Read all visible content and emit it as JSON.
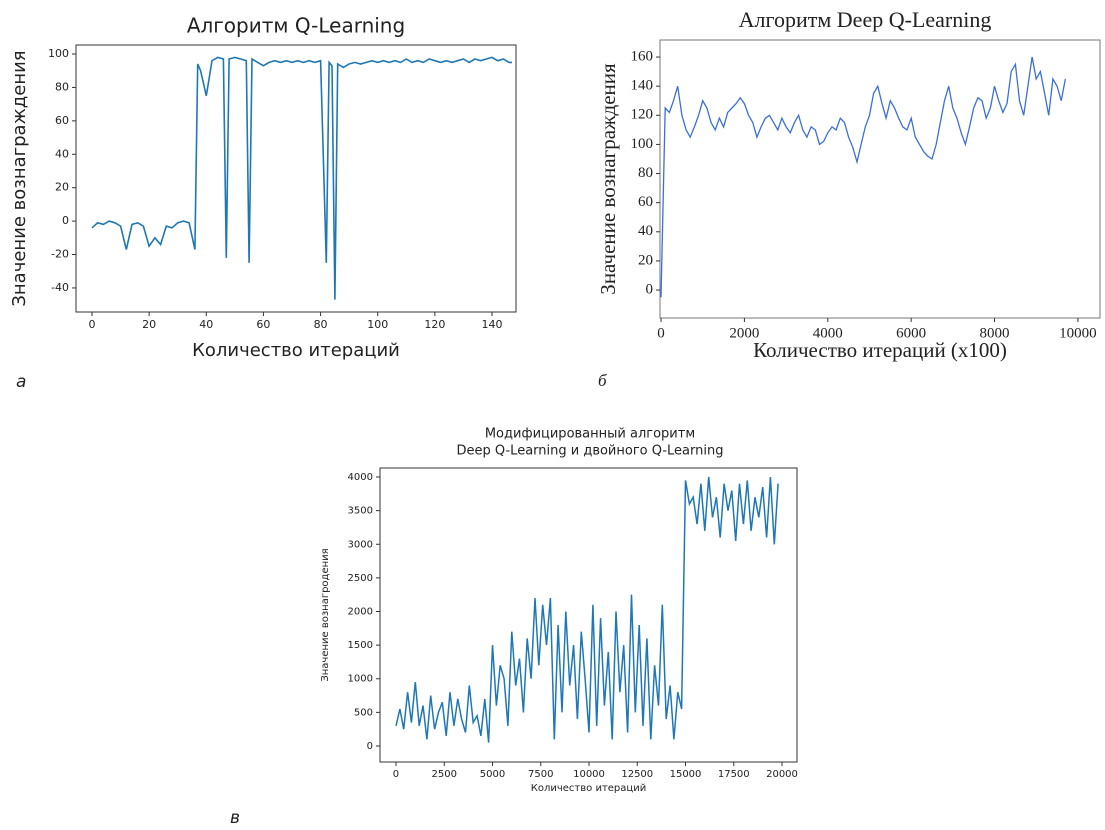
{
  "chart_data": [
    {
      "type": "line",
      "title": "Алгоритм Q-Learning",
      "xlabel": "Количество итераций",
      "ylabel": "Значение вознаграждения",
      "panel_label": "а",
      "color": "#1f77b4",
      "xlim": [
        -5.6,
        148.4
      ],
      "ylim": [
        -54.4,
        105.4
      ],
      "xticks": [
        0,
        20,
        40,
        60,
        80,
        100,
        120,
        140
      ],
      "yticks": [
        -40,
        -20,
        0,
        20,
        40,
        60,
        80,
        100
      ],
      "x": [
        0,
        2,
        4,
        6,
        8,
        10,
        12,
        14,
        16,
        18,
        20,
        22,
        24,
        26,
        28,
        30,
        32,
        34,
        36,
        37,
        38,
        40,
        42,
        44,
        46,
        47,
        48,
        50,
        52,
        54,
        55,
        56,
        58,
        60,
        62,
        64,
        66,
        68,
        70,
        72,
        74,
        76,
        78,
        80,
        82,
        83,
        84,
        85,
        86,
        88,
        90,
        92,
        94,
        96,
        98,
        100,
        102,
        104,
        106,
        108,
        110,
        112,
        114,
        116,
        118,
        120,
        122,
        124,
        126,
        128,
        130,
        132,
        134,
        136,
        138,
        140,
        142,
        144,
        146,
        147
      ],
      "values": [
        -4,
        -1,
        -2,
        0,
        -1,
        -3,
        -17,
        -2,
        -1,
        -3,
        -15,
        -10,
        -14,
        -3,
        -4,
        -1,
        0,
        -1,
        -17,
        94,
        90,
        75,
        96,
        98,
        97,
        -22,
        97,
        98,
        97,
        96,
        -25,
        97,
        95,
        93,
        95,
        96,
        95,
        96,
        95,
        96,
        95,
        96,
        95,
        96,
        -25,
        95,
        93,
        -47,
        94,
        92,
        94,
        95,
        94,
        95,
        96,
        95,
        96,
        95,
        96,
        95,
        97,
        95,
        96,
        95,
        97,
        96,
        95,
        96,
        95,
        96,
        97,
        95,
        97,
        96,
        97,
        98,
        96,
        97,
        95,
        95
      ]
    },
    {
      "type": "line",
      "title": "Алгоритм Deep Q-Learning",
      "xlabel": "Количество итераций (x100)",
      "ylabel": "Значение вознаграждения",
      "panel_label": "б",
      "color": "#3b6fd6",
      "xlim": [
        -25,
        10530
      ],
      "ylim": [
        -19.2,
        171.7
      ],
      "xticks": [
        0,
        2000,
        4000,
        6000,
        8000,
        10000
      ],
      "yticks": [
        0,
        20,
        40,
        60,
        80,
        100,
        120,
        140,
        160
      ],
      "x": [
        0,
        100,
        200,
        300,
        400,
        500,
        600,
        700,
        800,
        900,
        1000,
        1100,
        1200,
        1300,
        1400,
        1500,
        1600,
        1700,
        1800,
        1900,
        2000,
        2100,
        2200,
        2300,
        2400,
        2500,
        2600,
        2700,
        2800,
        2900,
        3000,
        3100,
        3200,
        3300,
        3400,
        3500,
        3600,
        3700,
        3800,
        3900,
        4000,
        4100,
        4200,
        4300,
        4400,
        4500,
        4600,
        4700,
        4800,
        4900,
        5000,
        5100,
        5200,
        5300,
        5400,
        5500,
        5600,
        5700,
        5800,
        5900,
        6000,
        6100,
        6200,
        6300,
        6400,
        6500,
        6600,
        6700,
        6800,
        6900,
        7000,
        7100,
        7200,
        7300,
        7400,
        7500,
        7600,
        7700,
        7800,
        7900,
        8000,
        8100,
        8200,
        8300,
        8400,
        8500,
        8600,
        8700,
        8800,
        8900,
        9000,
        9100,
        9200,
        9300,
        9400,
        9500,
        9600,
        9700
      ],
      "values": [
        -5,
        125,
        122,
        130,
        140,
        120,
        110,
        105,
        112,
        120,
        130,
        125,
        115,
        110,
        118,
        112,
        122,
        125,
        128,
        132,
        128,
        120,
        115,
        105,
        112,
        118,
        120,
        115,
        110,
        118,
        112,
        108,
        115,
        120,
        110,
        105,
        112,
        110,
        100,
        102,
        108,
        112,
        110,
        118,
        115,
        105,
        98,
        88,
        100,
        112,
        120,
        135,
        140,
        128,
        118,
        130,
        125,
        118,
        112,
        110,
        118,
        105,
        100,
        95,
        92,
        90,
        100,
        115,
        130,
        140,
        125,
        118,
        108,
        100,
        112,
        125,
        132,
        130,
        118,
        125,
        140,
        130,
        122,
        128,
        150,
        155,
        130,
        120,
        140,
        160,
        145,
        150,
        135,
        120,
        145,
        140,
        130,
        145
      ]
    },
    {
      "type": "line",
      "title": [
        "Модифицированный  алгоритм",
        "Deep Q-Learning и двойного Q-Learning"
      ],
      "xlabel": "Количество итераций",
      "ylabel": "Значение вознагродения",
      "panel_label": "в",
      "color": "#1f77b4",
      "xlim": [
        -829,
        20777
      ],
      "ylim": [
        -238,
        4134
      ],
      "xticks": [
        0,
        2500,
        5000,
        7500,
        10000,
        12500,
        15000,
        17500,
        20000
      ],
      "yticks": [
        0,
        500,
        1000,
        1500,
        2000,
        2500,
        3000,
        3500,
        4000
      ],
      "x": [
        0,
        200,
        400,
        600,
        800,
        1000,
        1200,
        1400,
        1600,
        1800,
        2000,
        2200,
        2400,
        2600,
        2800,
        3000,
        3200,
        3400,
        3600,
        3800,
        4000,
        4200,
        4400,
        4600,
        4800,
        5000,
        5200,
        5400,
        5600,
        5800,
        6000,
        6200,
        6400,
        6600,
        6800,
        7000,
        7200,
        7400,
        7600,
        7800,
        8000,
        8200,
        8400,
        8600,
        8800,
        9000,
        9200,
        9400,
        9600,
        9800,
        10000,
        10200,
        10400,
        10600,
        10800,
        11000,
        11200,
        11400,
        11600,
        11800,
        12000,
        12200,
        12400,
        12600,
        12800,
        13000,
        13200,
        13400,
        13600,
        13800,
        14000,
        14200,
        14400,
        14600,
        14800,
        15000,
        15200,
        15400,
        15600,
        15800,
        16000,
        16200,
        16400,
        16600,
        16800,
        17000,
        17200,
        17400,
        17600,
        17800,
        18000,
        18200,
        18400,
        18600,
        18800,
        19000,
        19200,
        19400,
        19600,
        19800
      ],
      "values": [
        300,
        550,
        250,
        800,
        350,
        950,
        300,
        600,
        100,
        750,
        250,
        500,
        650,
        150,
        800,
        300,
        700,
        400,
        200,
        900,
        350,
        450,
        150,
        700,
        50,
        1500,
        600,
        1200,
        1000,
        300,
        1700,
        900,
        1300,
        500,
        1600,
        1000,
        2200,
        1200,
        2100,
        1500,
        2200,
        100,
        1800,
        500,
        2000,
        900,
        1500,
        400,
        1700,
        1000,
        200,
        2100,
        300,
        1900,
        600,
        1400,
        100,
        2000,
        800,
        1500,
        200,
        2250,
        500,
        1800,
        300,
        1600,
        100,
        1200,
        600,
        2100,
        400,
        900,
        100,
        800,
        550,
        3950,
        3600,
        3700,
        3300,
        3900,
        3200,
        4000,
        3400,
        3700,
        3100,
        3900,
        3500,
        3800,
        3050,
        3900,
        3300,
        3950,
        3200,
        3700,
        3400,
        3850,
        3100,
        4000,
        3000,
        3900
      ]
    }
  ]
}
